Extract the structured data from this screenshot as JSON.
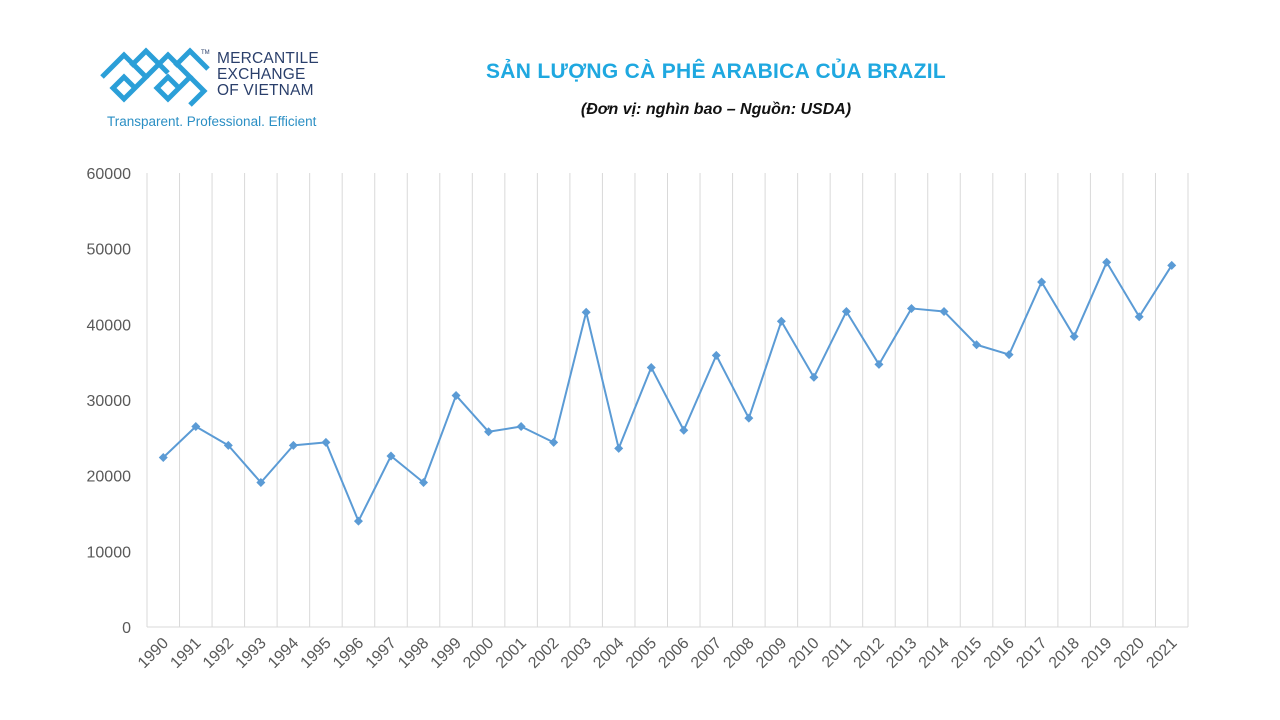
{
  "logo": {
    "lines": [
      "MERCANTILE",
      "EXCHANGE",
      "OF VIETNAM"
    ],
    "tm": "TM",
    "tagline": "Transparent. Professional. Efficient"
  },
  "colors": {
    "title": "#1fa8e0",
    "series": "#5b9bd5",
    "grid": "#d9d9d9",
    "logo_blue": "#2b9fd8",
    "logo_navy": "#2a3f6b"
  },
  "chart_data": {
    "type": "line",
    "title": "SẢN LƯỢNG CÀ PHÊ ARABICA CỦA BRAZIL",
    "subtitle": "(Đơn vị: nghìn bao – Nguồn: USDA)",
    "xlabel": "",
    "ylabel": "",
    "ylim": [
      0,
      60000
    ],
    "yticks": [
      0,
      10000,
      20000,
      30000,
      40000,
      50000,
      60000
    ],
    "grid": "vertical",
    "legend": "none",
    "categories": [
      "1990",
      "1991",
      "1992",
      "1993",
      "1994",
      "1995",
      "1996",
      "1997",
      "1998",
      "1999",
      "2000",
      "2001",
      "2002",
      "2003",
      "2004",
      "2005",
      "2006",
      "2007",
      "2008",
      "2009",
      "2010",
      "2011",
      "2012",
      "2013",
      "2014",
      "2015",
      "2016",
      "2017",
      "2018",
      "2019",
      "2020",
      "2021"
    ],
    "series": [
      {
        "name": "Arabica",
        "marker": "diamond",
        "values": [
          22400,
          26500,
          24000,
          19100,
          24000,
          24400,
          14000,
          22600,
          19100,
          30600,
          25800,
          26500,
          24400,
          41600,
          23600,
          34300,
          26000,
          35900,
          27600,
          40400,
          33000,
          41700,
          34700,
          42100,
          41700,
          37300,
          36000,
          45600,
          38400,
          48200,
          41000,
          47800
        ]
      }
    ]
  }
}
